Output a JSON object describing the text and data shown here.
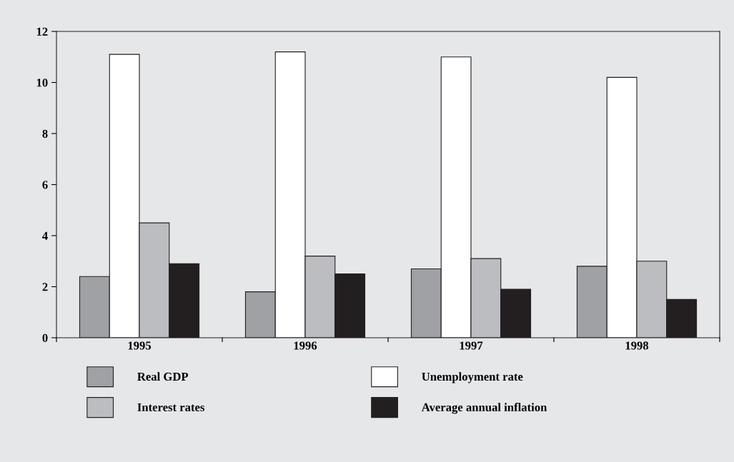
{
  "chart_data": {
    "type": "bar",
    "categories": [
      "1995",
      "1996",
      "1997",
      "1998"
    ],
    "series": [
      {
        "name": "Real GDP",
        "color": "#a0a1a5",
        "values": [
          2.4,
          1.8,
          2.7,
          2.8
        ]
      },
      {
        "name": "Unemployment rate",
        "color": "#ffffff",
        "values": [
          11.1,
          11.2,
          11.0,
          10.2
        ]
      },
      {
        "name": "Interest rates",
        "color": "#bcbdc1",
        "values": [
          4.5,
          3.2,
          3.1,
          3.0
        ]
      },
      {
        "name": "Average annual inflation",
        "color": "#231f20",
        "values": [
          2.9,
          2.5,
          1.9,
          1.5
        ]
      }
    ],
    "ylim": [
      0,
      12
    ],
    "yticks": [
      0,
      2,
      4,
      6,
      8,
      10,
      12
    ],
    "grid": false,
    "legend": "bottom"
  }
}
